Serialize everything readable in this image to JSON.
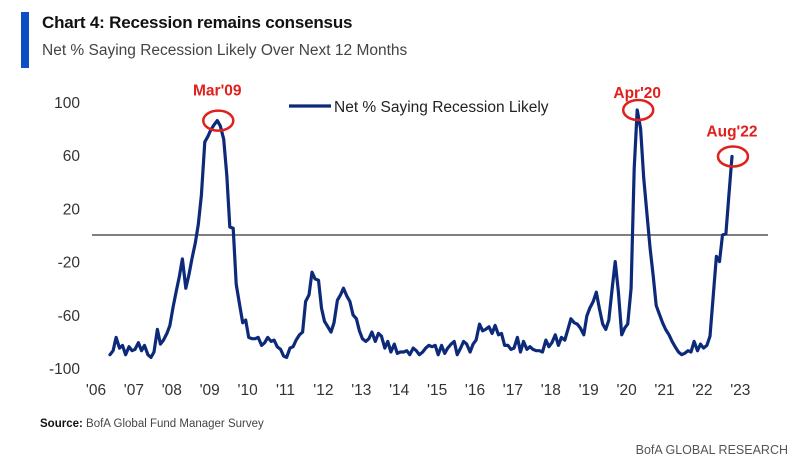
{
  "header": {
    "title": "Chart 4: Recession remains consensus",
    "subtitle": "Net % Saying Recession Likely Over Next 12 Months"
  },
  "footer": {
    "source_label": "Source:",
    "source_text": "BofA Global Fund Manager Survey",
    "brand": "BofA GLOBAL RESEARCH"
  },
  "colors": {
    "accent": "#0a4fc4",
    "series": "#0d2a7a",
    "annotation": "#e0201c",
    "zero_line": "#555555",
    "axis_text": "#333333"
  },
  "chart_data": {
    "type": "line",
    "title": "Chart 4: Recession remains consensus",
    "subtitle": "Net % Saying Recession Likely Over Next 12 Months",
    "xlabel": "",
    "ylabel": "",
    "ylim": [
      -100,
      100
    ],
    "yticks": [
      100,
      60,
      20,
      -20,
      -60,
      -100
    ],
    "xlim": [
      2006,
      2024
    ],
    "xtick_labels": [
      "'06",
      "'07",
      "'08",
      "'09",
      "'10",
      "'11",
      "'12",
      "'13",
      "'14",
      "'15",
      "'16",
      "'17",
      "'18",
      "'19",
      "'20",
      "'21",
      "'22",
      "'23"
    ],
    "xtick_values": [
      2006,
      2007,
      2008,
      2009,
      2010,
      2011,
      2012,
      2013,
      2014,
      2015,
      2016,
      2017,
      2018,
      2019,
      2020,
      2021,
      2022,
      2023
    ],
    "reference_line": 0,
    "grid": false,
    "legend": {
      "position": "top-center",
      "entries": [
        "Net % Saying Recession Likely"
      ]
    },
    "series": [
      {
        "name": "Net % Saying Recession Likely",
        "points": [
          [
            2006.37,
            -90
          ],
          [
            2006.45,
            -87
          ],
          [
            2006.53,
            -77
          ],
          [
            2006.62,
            -85
          ],
          [
            2006.7,
            -83
          ],
          [
            2006.78,
            -90
          ],
          [
            2006.87,
            -84
          ],
          [
            2006.95,
            -87
          ],
          [
            2007.03,
            -86
          ],
          [
            2007.12,
            -81
          ],
          [
            2007.2,
            -87
          ],
          [
            2007.28,
            -83
          ],
          [
            2007.37,
            -90
          ],
          [
            2007.45,
            -92
          ],
          [
            2007.53,
            -88
          ],
          [
            2007.62,
            -71
          ],
          [
            2007.7,
            -82
          ],
          [
            2007.78,
            -79
          ],
          [
            2007.87,
            -74
          ],
          [
            2007.95,
            -68
          ],
          [
            2008.03,
            -55
          ],
          [
            2008.12,
            -42
          ],
          [
            2008.2,
            -31
          ],
          [
            2008.28,
            -18
          ],
          [
            2008.37,
            -40
          ],
          [
            2008.45,
            -30
          ],
          [
            2008.53,
            -18
          ],
          [
            2008.62,
            -6
          ],
          [
            2008.7,
            8
          ],
          [
            2008.78,
            30
          ],
          [
            2008.87,
            70
          ],
          [
            2008.95,
            74
          ],
          [
            2009.03,
            79
          ],
          [
            2009.12,
            83
          ],
          [
            2009.2,
            86
          ],
          [
            2009.28,
            82
          ],
          [
            2009.37,
            72
          ],
          [
            2009.45,
            45
          ],
          [
            2009.53,
            6
          ],
          [
            2009.62,
            5
          ],
          [
            2009.7,
            -37
          ],
          [
            2009.78,
            -51
          ],
          [
            2009.87,
            -66
          ],
          [
            2009.95,
            -64
          ],
          [
            2010.03,
            -77
          ],
          [
            2010.12,
            -78
          ],
          [
            2010.2,
            -78
          ],
          [
            2010.28,
            -77
          ],
          [
            2010.37,
            -83
          ],
          [
            2010.45,
            -81
          ],
          [
            2010.53,
            -77
          ],
          [
            2010.62,
            -80
          ],
          [
            2010.7,
            -79
          ],
          [
            2010.78,
            -84
          ],
          [
            2010.87,
            -86
          ],
          [
            2010.95,
            -91
          ],
          [
            2011.03,
            -92
          ],
          [
            2011.12,
            -85
          ],
          [
            2011.2,
            -84
          ],
          [
            2011.28,
            -79
          ],
          [
            2011.37,
            -75
          ],
          [
            2011.45,
            -73
          ],
          [
            2011.53,
            -50
          ],
          [
            2011.62,
            -45
          ],
          [
            2011.7,
            -28
          ],
          [
            2011.78,
            -33
          ],
          [
            2011.87,
            -34
          ],
          [
            2011.95,
            -55
          ],
          [
            2012.03,
            -65
          ],
          [
            2012.12,
            -69
          ],
          [
            2012.2,
            -73
          ],
          [
            2012.28,
            -66
          ],
          [
            2012.37,
            -49
          ],
          [
            2012.45,
            -45
          ],
          [
            2012.53,
            -40
          ],
          [
            2012.62,
            -46
          ],
          [
            2012.7,
            -50
          ],
          [
            2012.78,
            -60
          ],
          [
            2012.87,
            -63
          ],
          [
            2012.95,
            -72
          ],
          [
            2013.03,
            -78
          ],
          [
            2013.12,
            -80
          ],
          [
            2013.2,
            -78
          ],
          [
            2013.28,
            -73
          ],
          [
            2013.37,
            -80
          ],
          [
            2013.45,
            -74
          ],
          [
            2013.53,
            -76
          ],
          [
            2013.62,
            -85
          ],
          [
            2013.7,
            -80
          ],
          [
            2013.78,
            -88
          ],
          [
            2013.87,
            -82
          ],
          [
            2013.95,
            -89
          ],
          [
            2014.03,
            -88
          ],
          [
            2014.12,
            -88
          ],
          [
            2014.2,
            -87
          ],
          [
            2014.28,
            -90
          ],
          [
            2014.37,
            -85
          ],
          [
            2014.45,
            -87
          ],
          [
            2014.53,
            -90
          ],
          [
            2014.62,
            -88
          ],
          [
            2014.7,
            -85
          ],
          [
            2014.78,
            -83
          ],
          [
            2014.87,
            -84
          ],
          [
            2014.95,
            -83
          ],
          [
            2015.03,
            -90
          ],
          [
            2015.12,
            -83
          ],
          [
            2015.2,
            -89
          ],
          [
            2015.28,
            -85
          ],
          [
            2015.37,
            -82
          ],
          [
            2015.45,
            -80
          ],
          [
            2015.53,
            -90
          ],
          [
            2015.62,
            -85
          ],
          [
            2015.7,
            -80
          ],
          [
            2015.78,
            -82
          ],
          [
            2015.87,
            -88
          ],
          [
            2015.95,
            -82
          ],
          [
            2016.03,
            -79
          ],
          [
            2016.12,
            -67
          ],
          [
            2016.2,
            -72
          ],
          [
            2016.28,
            -71
          ],
          [
            2016.37,
            -69
          ],
          [
            2016.45,
            -74
          ],
          [
            2016.53,
            -68
          ],
          [
            2016.62,
            -75
          ],
          [
            2016.7,
            -74
          ],
          [
            2016.78,
            -83
          ],
          [
            2016.87,
            -83
          ],
          [
            2016.95,
            -86
          ],
          [
            2017.03,
            -85
          ],
          [
            2017.12,
            -77
          ],
          [
            2017.2,
            -88
          ],
          [
            2017.28,
            -80
          ],
          [
            2017.37,
            -86
          ],
          [
            2017.45,
            -84
          ],
          [
            2017.53,
            -86
          ],
          [
            2017.62,
            -87
          ],
          [
            2017.7,
            -87
          ],
          [
            2017.78,
            -88
          ],
          [
            2017.87,
            -79
          ],
          [
            2017.95,
            -84
          ],
          [
            2018.03,
            -81
          ],
          [
            2018.12,
            -75
          ],
          [
            2018.2,
            -83
          ],
          [
            2018.28,
            -77
          ],
          [
            2018.37,
            -79
          ],
          [
            2018.45,
            -71
          ],
          [
            2018.53,
            -63
          ],
          [
            2018.62,
            -66
          ],
          [
            2018.7,
            -67
          ],
          [
            2018.78,
            -70
          ],
          [
            2018.87,
            -75
          ],
          [
            2018.95,
            -61
          ],
          [
            2019.03,
            -55
          ],
          [
            2019.12,
            -50
          ],
          [
            2019.2,
            -43
          ],
          [
            2019.28,
            -55
          ],
          [
            2019.37,
            -67
          ],
          [
            2019.45,
            -71
          ],
          [
            2019.53,
            -64
          ],
          [
            2019.62,
            -40
          ],
          [
            2019.7,
            -20
          ],
          [
            2019.78,
            -42
          ],
          [
            2019.87,
            -75
          ],
          [
            2019.95,
            -70
          ],
          [
            2020.03,
            -67
          ],
          [
            2020.12,
            -40
          ],
          [
            2020.2,
            50
          ],
          [
            2020.28,
            94
          ],
          [
            2020.37,
            80
          ],
          [
            2020.45,
            43
          ],
          [
            2020.53,
            18
          ],
          [
            2020.62,
            -10
          ],
          [
            2020.7,
            -30
          ],
          [
            2020.78,
            -53
          ],
          [
            2020.87,
            -60
          ],
          [
            2020.95,
            -66
          ],
          [
            2021.03,
            -71
          ],
          [
            2021.12,
            -75
          ],
          [
            2021.2,
            -80
          ],
          [
            2021.28,
            -84
          ],
          [
            2021.37,
            -88
          ],
          [
            2021.45,
            -90
          ],
          [
            2021.53,
            -89
          ],
          [
            2021.62,
            -87
          ],
          [
            2021.7,
            -88
          ],
          [
            2021.78,
            -80
          ],
          [
            2021.87,
            -87
          ],
          [
            2021.95,
            -82
          ],
          [
            2022.03,
            -85
          ],
          [
            2022.12,
            -83
          ],
          [
            2022.2,
            -76
          ],
          [
            2022.28,
            -48
          ],
          [
            2022.37,
            -16
          ],
          [
            2022.45,
            -20
          ],
          [
            2022.53,
            0
          ],
          [
            2022.62,
            1
          ],
          [
            2022.7,
            30
          ],
          [
            2022.78,
            59
          ]
        ]
      }
    ],
    "annotations": [
      {
        "label": "Mar'09",
        "x": 2009.2,
        "y": 86
      },
      {
        "label": "Apr'20",
        "x": 2020.28,
        "y": 94
      },
      {
        "label": "Aug'22",
        "x": 2022.78,
        "y": 59
      }
    ]
  }
}
